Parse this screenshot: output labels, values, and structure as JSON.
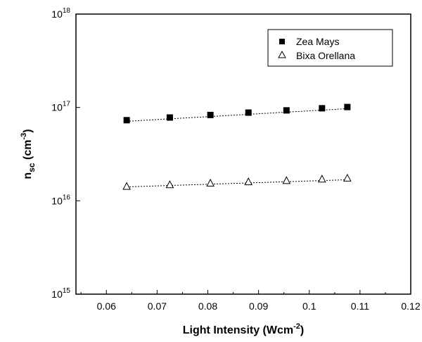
{
  "chart_data": {
    "type": "scatter",
    "xlabel": "Light Intensity (Wcm",
    "xlabel_sup": "-2",
    "xlabel_close": ")",
    "ylabel": "n",
    "ylabel_sub": "sc",
    "ylabel_unit": " (cm",
    "ylabel_sup": "-3",
    "ylabel_close": ")",
    "xlim": [
      0.054,
      0.12
    ],
    "ylim": [
      1000000000000000.0,
      1e+18
    ],
    "yscale": "log",
    "x_ticks": [
      0.06,
      0.07,
      0.08,
      0.09,
      0.1,
      0.11,
      0.12
    ],
    "x_tick_labels": [
      "0.06",
      "0.07",
      "0.08",
      "0.09",
      "0.1",
      "0.11",
      "0.12"
    ],
    "y_ticks": [
      1000000000000000.0,
      1e+16,
      1e+17,
      1e+18
    ],
    "y_tick_base": "10",
    "y_tick_exponents": [
      "15",
      "16",
      "17",
      "18"
    ],
    "grid": false,
    "legend_position": "top-right",
    "series": [
      {
        "name": "Zea Mays",
        "marker": "filled-square",
        "color": "#000000",
        "x": [
          0.064,
          0.0725,
          0.0805,
          0.088,
          0.0955,
          0.1025,
          0.1075
        ],
        "y": [
          7.3e+16,
          7.8e+16,
          8.3e+16,
          8.8e+16,
          9.3e+16,
          9.8e+16,
          1.01e+17
        ],
        "fit": {
          "x": [
            0.064,
            0.1075
          ],
          "y": [
            7.1e+16,
            9.7e+16
          ]
        }
      },
      {
        "name": "Bixa Orellana",
        "marker": "open-triangle",
        "color": "#000000",
        "x": [
          0.064,
          0.0725,
          0.0805,
          0.088,
          0.0955,
          0.1025,
          0.1075
        ],
        "y": [
          1.42e+16,
          1.48e+16,
          1.54e+16,
          1.59e+16,
          1.64e+16,
          1.7e+16,
          1.74e+16
        ],
        "fit": {
          "x": [
            0.064,
            0.1075
          ],
          "y": [
            1.41e+16,
            1.68e+16
          ]
        }
      }
    ]
  }
}
